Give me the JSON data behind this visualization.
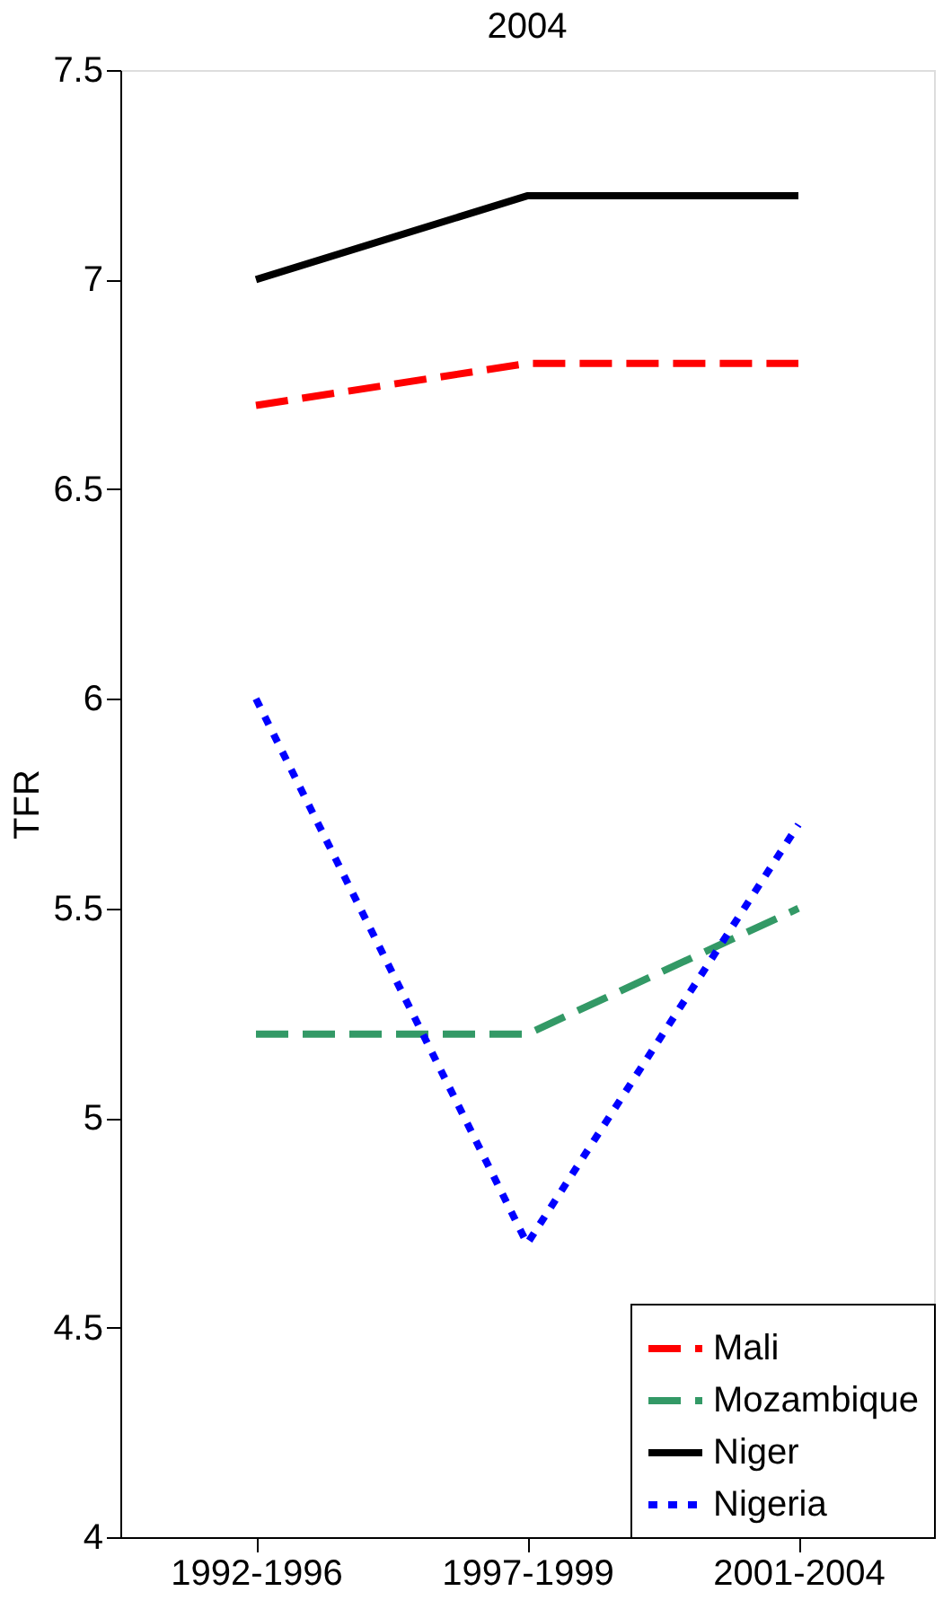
{
  "chart_data": {
    "type": "line",
    "title": "2004",
    "ylabel": "TFR",
    "categories": [
      "1992-1996",
      "1997-1999",
      "2001-2004"
    ],
    "series": [
      {
        "name": "Mali",
        "color": "#ff0000",
        "line_style": "dashed",
        "values": [
          6.7,
          6.8,
          6.8
        ]
      },
      {
        "name": "Mozambique",
        "color": "#339966",
        "line_style": "dashed",
        "values": [
          5.2,
          5.2,
          5.5
        ]
      },
      {
        "name": "Niger",
        "color": "#000000",
        "line_style": "solid",
        "values": [
          7.0,
          7.2,
          7.2
        ]
      },
      {
        "name": "Nigeria",
        "color": "#0000ff",
        "line_style": "dotted",
        "values": [
          6.0,
          4.7,
          5.7
        ]
      }
    ],
    "ylim": [
      4,
      7.5
    ],
    "yticks": [
      4,
      4.5,
      5,
      5.5,
      6,
      6.5,
      7,
      7.5
    ],
    "grid": false,
    "legend": "bottom right",
    "marker": "none"
  }
}
